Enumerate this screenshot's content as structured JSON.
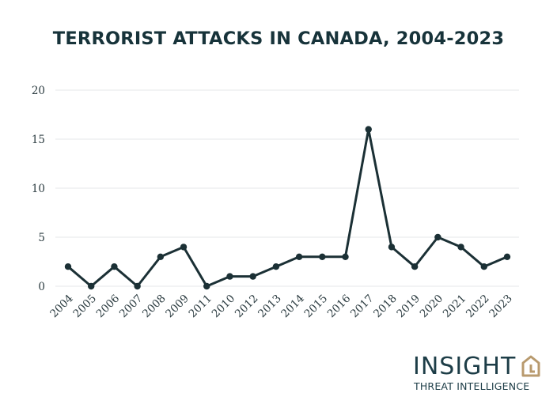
{
  "chart_data": {
    "type": "line",
    "title": "TERRORIST ATTACKS IN CANADA, 2004-2023",
    "xlabel": "",
    "ylabel": "",
    "categories": [
      "2004",
      "2005",
      "2006",
      "2007",
      "2008",
      "2009",
      "2011",
      "2010",
      "2012",
      "2013",
      "2014",
      "2015",
      "2016",
      "2017",
      "2018",
      "2019",
      "2020",
      "2021",
      "2022",
      "2023"
    ],
    "values": [
      2,
      0,
      2,
      0,
      3,
      4,
      0,
      1,
      1,
      2,
      3,
      3,
      3,
      16,
      4,
      2,
      5,
      4,
      2,
      3
    ],
    "ylim": [
      0,
      20
    ],
    "yticks": [
      0,
      5,
      10,
      15,
      20
    ],
    "grid": true,
    "colors": {
      "line": "#1b3035",
      "grid": "#e4e7e8",
      "text": "#17333a"
    }
  },
  "logo": {
    "brand": "INSIGHT",
    "tagline": "THREAT INTELLIGENCE",
    "colors": {
      "text": "#1d3d47",
      "mark": "#b89a6e"
    }
  }
}
